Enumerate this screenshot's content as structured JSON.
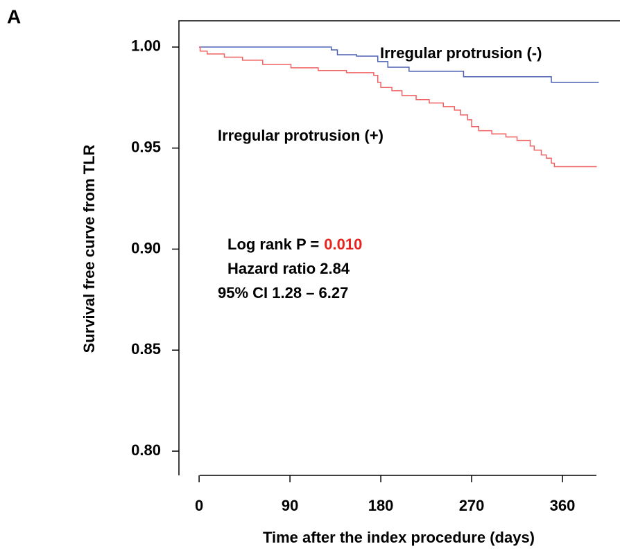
{
  "chart_data": {
    "type": "step",
    "panel_label": "A",
    "xlabel": "Time  after the index procedure (days)",
    "ylabel": "Survival free curve from TLR",
    "xlim": [
      -20,
      417
    ],
    "ylim": [
      0.788,
      1.013
    ],
    "xticks": [
      0,
      90,
      180,
      270,
      360
    ],
    "yticks": [
      {
        "value": 0.8,
        "label": "0.80"
      },
      {
        "value": 0.85,
        "label": "0.85"
      },
      {
        "value": 0.9,
        "label": "0.90"
      },
      {
        "value": 0.95,
        "label": "0.95"
      },
      {
        "value": 1.0,
        "label": "1.00"
      }
    ],
    "series": [
      {
        "name": "Irregular protrusion (-)",
        "color": "#4a5fb0",
        "x": [
          0,
          131,
          137,
          156,
          177,
          187,
          208,
          262,
          349,
          396
        ],
        "values": [
          1.0,
          0.9986,
          0.9962,
          0.9955,
          0.9928,
          0.99,
          0.988,
          0.9853,
          0.9825,
          0.9825
        ]
      },
      {
        "name": "Irregular protrusion (+)",
        "color": "#f06060",
        "x": [
          0,
          1,
          8,
          25,
          43,
          63,
          91,
          118,
          146,
          173,
          177,
          180,
          191,
          201,
          215,
          228,
          242,
          253,
          259,
          266,
          270,
          277,
          290,
          304,
          315,
          328,
          332,
          339,
          344,
          349,
          352,
          394
        ],
        "values": [
          1.0,
          0.998,
          0.9966,
          0.995,
          0.9935,
          0.9914,
          0.9897,
          0.9884,
          0.9873,
          0.986,
          0.9825,
          0.98,
          0.9784,
          0.976,
          0.974,
          0.9723,
          0.9705,
          0.9688,
          0.9664,
          0.964,
          0.9606,
          0.9586,
          0.957,
          0.9555,
          0.9538,
          0.951,
          0.949,
          0.9466,
          0.945,
          0.9425,
          0.9408,
          0.9408
        ]
      }
    ],
    "annotations": {
      "logrank": "Log rank P =",
      "p_value": "0.010",
      "hazard": "Hazard ratio 2.84",
      "ci": "95% CI 1.28 – 6.27"
    }
  }
}
